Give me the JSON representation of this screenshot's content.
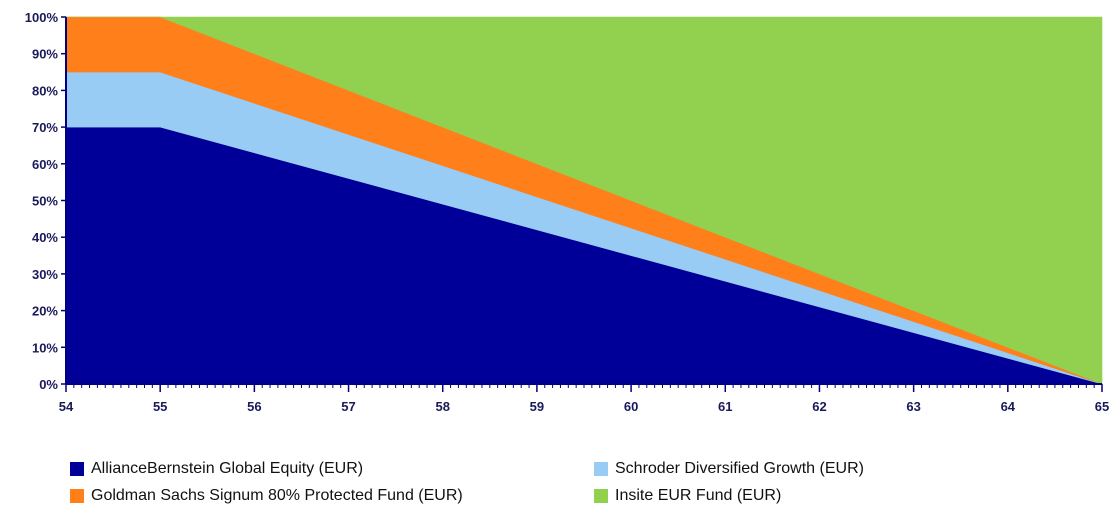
{
  "chart_data": {
    "type": "area",
    "stacked": true,
    "percent_scale": true,
    "title": "",
    "xlabel": "",
    "ylabel": "",
    "xlim": [
      54,
      65
    ],
    "ylim": [
      0,
      100
    ],
    "x_ticks": [
      "54",
      "55",
      "56",
      "57",
      "58",
      "59",
      "60",
      "61",
      "62",
      "63",
      "64",
      "65"
    ],
    "y_ticks": [
      "0%",
      "10%",
      "20%",
      "30%",
      "40%",
      "50%",
      "60%",
      "70%",
      "80%",
      "90%",
      "100%"
    ],
    "x": [
      54,
      55,
      65
    ],
    "series": [
      {
        "name": "AllianceBernstein Global Equity (EUR)",
        "color": "#000099",
        "values": [
          70,
          70,
          0
        ]
      },
      {
        "name": "Schroder Diversified Growth (EUR)",
        "color": "#99ccf5",
        "values": [
          15,
          15,
          0
        ]
      },
      {
        "name": "Goldman Sachs Signum 80% Protected Fund (EUR)",
        "color": "#ff7f1a",
        "values": [
          15,
          15,
          0
        ]
      },
      {
        "name": "Insite EUR Fund (EUR)",
        "color": "#92d050",
        "values": [
          0,
          0,
          100
        ]
      }
    ],
    "grid": false,
    "legend_position": "bottom"
  }
}
